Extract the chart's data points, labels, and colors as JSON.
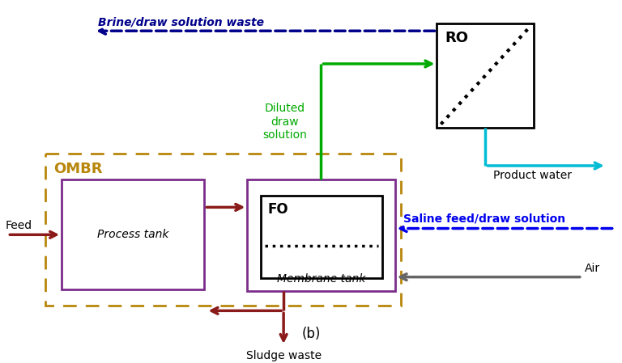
{
  "fig_width": 7.68,
  "fig_height": 4.49,
  "dpi": 100,
  "bg_color": "#ffffff",
  "label_b": "(b)",
  "ombr_color": "#b8860b",
  "process_tank_color": "#7b2d8b",
  "membrane_tank_color": "#7b2d8b",
  "fo_color": "#000000",
  "ro_color": "#000000",
  "green_color": "#00aa00",
  "dark_blue_color": "#00008B",
  "cyan_color": "#00bcd4",
  "dark_red_color": "#8B1a1a",
  "gray_color": "#666666",
  "saline_color": "#0000ee",
  "brine_text": "Brine/draw solution waste",
  "diluted_text": "Diluted\ndraw\nsolution",
  "product_water_text": "Product water",
  "saline_text": "Saline feed/draw solution",
  "air_text": "Air",
  "feed_text": "Feed",
  "sludge_text": "Sludge waste",
  "ombr_label": "OMBR",
  "fo_label": "FO",
  "ro_label": "RO",
  "process_tank_label": "Process tank",
  "membrane_tank_label": "Membrane tank"
}
